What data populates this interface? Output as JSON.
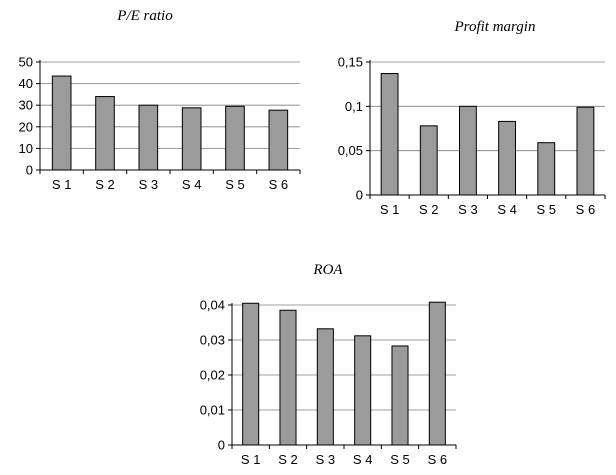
{
  "chart_data": [
    {
      "type": "bar",
      "title": "P/E ratio",
      "categories": [
        "S 1",
        "S 2",
        "S 3",
        "S 4",
        "S 5",
        "S 6"
      ],
      "values": [
        43.5,
        34,
        30,
        28.8,
        29.5,
        27.7
      ],
      "ylim": [
        0,
        50
      ],
      "yticks": [
        0,
        10,
        20,
        30,
        40,
        50
      ],
      "ytick_labels": [
        "0",
        "10",
        "20",
        "30",
        "40",
        "50"
      ],
      "grid": true,
      "bar_color": "#9b9b9b"
    },
    {
      "type": "bar",
      "title": "Profit margin",
      "categories": [
        "S 1",
        "S 2",
        "S 3",
        "S 4",
        "S 5",
        "S 6"
      ],
      "values": [
        0.137,
        0.078,
        0.1,
        0.083,
        0.059,
        0.099
      ],
      "ylim": [
        0,
        0.15
      ],
      "yticks": [
        0,
        0.05,
        0.1,
        0.15
      ],
      "ytick_labels": [
        "0",
        "0,05",
        "0,1",
        "0,15"
      ],
      "grid": true,
      "bar_color": "#9b9b9b"
    },
    {
      "type": "bar",
      "title": "ROA",
      "categories": [
        "S 1",
        "S 2",
        "S 3",
        "S 4",
        "S 5",
        "S 6"
      ],
      "values": [
        0.0405,
        0.0385,
        0.0332,
        0.0312,
        0.0283,
        0.0408
      ],
      "ylim": [
        0,
        0.04
      ],
      "yticks": [
        0,
        0.01,
        0.02,
        0.03,
        0.04
      ],
      "ytick_labels": [
        "0",
        "0,01",
        "0,02",
        "0,03",
        "0,04"
      ],
      "grid": true,
      "bar_color": "#9b9b9b"
    }
  ]
}
